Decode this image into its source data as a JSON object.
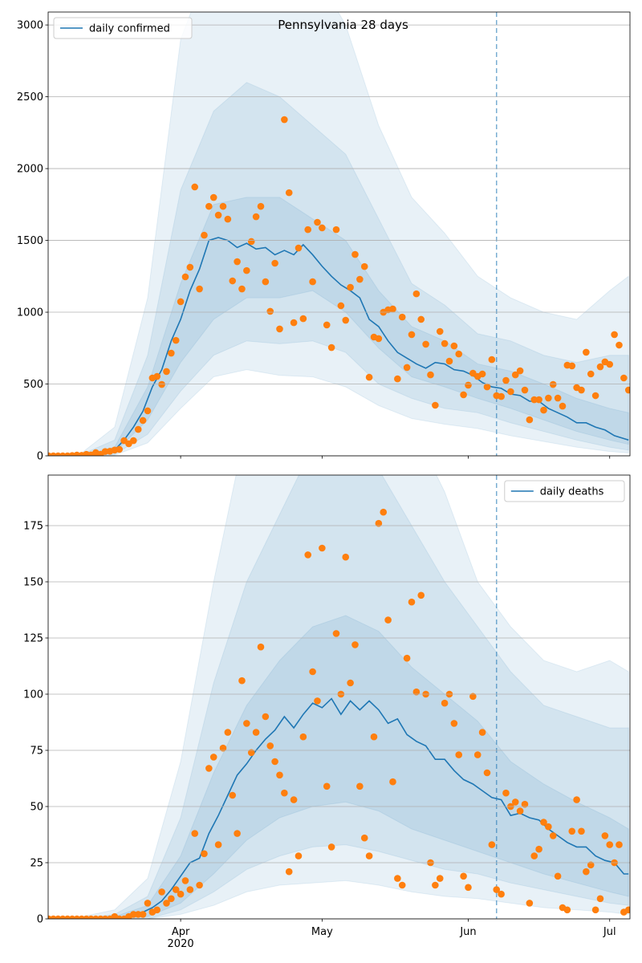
{
  "chart_data": [
    {
      "type": "line",
      "title": "Pennsylvania 28 days",
      "legend": "upper left",
      "grid": true,
      "show_xtick_labels": false,
      "xlim": [
        63.9,
        187.3
      ],
      "xticks": [
        92,
        122,
        153,
        183
      ],
      "ylim": [
        0,
        3090
      ],
      "yticks": [
        0,
        500,
        1000,
        1500,
        2000,
        2500,
        3000
      ],
      "vline": {
        "x": 159,
        "color": "#1f77b4"
      },
      "x": [
        64,
        65,
        66,
        67,
        68,
        69,
        70,
        71,
        72,
        73,
        74,
        75,
        76,
        77,
        78,
        79,
        80,
        81,
        82,
        83,
        84,
        85,
        86,
        87,
        88,
        89,
        90,
        91,
        92,
        93,
        94,
        95,
        96,
        97,
        98,
        99,
        100,
        101,
        102,
        103,
        104,
        105,
        106,
        107,
        108,
        109,
        110,
        111,
        112,
        113,
        114,
        115,
        116,
        117,
        118,
        119,
        120,
        121,
        122,
        123,
        124,
        125,
        126,
        127,
        128,
        129,
        130,
        131,
        132,
        133,
        134,
        135,
        136,
        137,
        138,
        139,
        140,
        141,
        142,
        143,
        144,
        145,
        146,
        147,
        148,
        149,
        150,
        151,
        152,
        153,
        154,
        155,
        156,
        157,
        158,
        159,
        160,
        161,
        162,
        163,
        164,
        165,
        166,
        167,
        168,
        169,
        170,
        171,
        172,
        173,
        174,
        175,
        176,
        177,
        178,
        179,
        180,
        181,
        182,
        183,
        184,
        185,
        186,
        187
      ],
      "points": {
        "color": "#ff7f0e",
        "values": [
          0,
          0,
          0,
          0,
          0,
          2,
          5,
          3,
          10,
          6,
          22,
          10,
          30,
          32,
          40,
          45,
          106,
          84,
          106,
          184,
          246,
          313,
          542,
          553,
          497,
          587,
          715,
          804,
          1073,
          1246,
          1313,
          1872,
          1162,
          1536,
          1737,
          1799,
          1676,
          1737,
          1648,
          1218,
          1352,
          1162,
          1290,
          1492,
          1665,
          1737,
          1212,
          1006,
          1341,
          883,
          2341,
          1832,
          927,
          1447,
          955,
          1575,
          1212,
          1626,
          1587,
          911,
          754,
          1575,
          1045,
          944,
          1173,
          1402,
          1229,
          1318,
          547,
          827,
          816,
          1000,
          1017,
          1022,
          536,
          966,
          615,
          844,
          1128,
          950,
          777,
          564,
          352,
          866,
          782,
          659,
          765,
          709,
          425,
          492,
          575,
          553,
          570,
          480,
          670,
          419,
          413,
          525,
          447,
          564,
          592,
          458,
          251,
          391,
          391,
          318,
          402,
          497,
          402,
          346,
          631,
          626,
          475,
          458,
          721,
          570,
          419,
          620,
          654,
          637,
          844,
          771,
          542,
          458
        ]
      },
      "series": [
        {
          "name": "daily confirmed",
          "color": "#1f77b4",
          "x": [
            64,
            66,
            68,
            70,
            72,
            74,
            76,
            78,
            80,
            82,
            84,
            86,
            88,
            90,
            92,
            94,
            96,
            98,
            100,
            102,
            104,
            106,
            108,
            110,
            112,
            114,
            116,
            118,
            120,
            122,
            124,
            126,
            128,
            130,
            132,
            134,
            136,
            138,
            140,
            142,
            144,
            146,
            148,
            150,
            152,
            154,
            156,
            158,
            160,
            162,
            164,
            166,
            168,
            170,
            172,
            174,
            176,
            178,
            180,
            182,
            184,
            186,
            187
          ],
          "values": [
            0,
            0,
            1,
            3,
            8,
            15,
            25,
            40,
            110,
            200,
            310,
            480,
            600,
            800,
            950,
            1150,
            1300,
            1500,
            1520,
            1500,
            1450,
            1480,
            1440,
            1450,
            1400,
            1430,
            1400,
            1470,
            1400,
            1320,
            1250,
            1190,
            1150,
            1100,
            950,
            900,
            800,
            720,
            680,
            640,
            610,
            650,
            640,
            600,
            590,
            560,
            510,
            480,
            470,
            430,
            420,
            380,
            380,
            330,
            300,
            270,
            230,
            230,
            200,
            180,
            140,
            120,
            110
          ]
        }
      ],
      "bands": [
        {
          "color": "#1f77b4",
          "opacity": 0.1,
          "x": [
            64,
            71,
            78,
            85,
            92,
            99,
            106,
            113,
            120,
            127,
            134,
            141,
            148,
            155,
            162,
            169,
            176,
            183,
            187
          ],
          "lower": [
            0,
            0,
            5,
            90,
            330,
            550,
            600,
            560,
            550,
            480,
            350,
            260,
            220,
            190,
            140,
            100,
            60,
            30,
            20
          ],
          "upper": [
            0,
            20,
            200,
            1100,
            2900,
            3500,
            3600,
            3500,
            3400,
            3000,
            2300,
            1800,
            1550,
            1250,
            1100,
            1000,
            950,
            1150,
            1250
          ]
        },
        {
          "color": "#1f77b4",
          "opacity": 0.1,
          "x": [
            64,
            71,
            78,
            85,
            92,
            99,
            106,
            113,
            120,
            127,
            134,
            141,
            148,
            155,
            162,
            169,
            176,
            183,
            187
          ],
          "lower": [
            0,
            0,
            10,
            150,
            450,
            700,
            800,
            780,
            800,
            720,
            500,
            400,
            330,
            300,
            230,
            170,
            110,
            60,
            40
          ],
          "upper": [
            0,
            10,
            110,
            700,
            1850,
            2400,
            2600,
            2500,
            2300,
            2100,
            1650,
            1200,
            1050,
            850,
            800,
            700,
            650,
            700,
            700
          ]
        },
        {
          "color": "#1f77b4",
          "opacity": 0.1,
          "x": [
            64,
            71,
            78,
            85,
            92,
            99,
            106,
            113,
            120,
            127,
            134,
            141,
            148,
            155,
            162,
            169,
            176,
            183,
            187
          ],
          "lower": [
            0,
            1,
            25,
            250,
            650,
            950,
            1100,
            1100,
            1150,
            1000,
            750,
            550,
            480,
            400,
            330,
            250,
            170,
            110,
            80
          ],
          "upper": [
            0,
            5,
            60,
            480,
            1200,
            1750,
            1800,
            1800,
            1650,
            1500,
            1150,
            900,
            800,
            640,
            590,
            500,
            400,
            330,
            300
          ]
        }
      ]
    },
    {
      "type": "line",
      "legend": "upper right",
      "grid": true,
      "show_xtick_labels": true,
      "xlim": [
        63.9,
        187.3
      ],
      "xticks": [
        {
          "value": 92,
          "label": "Apr\n2020"
        },
        {
          "value": 122,
          "label": "May"
        },
        {
          "value": 153,
          "label": "Jun"
        },
        {
          "value": 183,
          "label": "Jul"
        }
      ],
      "ylim": [
        0,
        197.5
      ],
      "yticks": [
        0,
        25,
        50,
        75,
        100,
        125,
        150,
        175
      ],
      "vline": {
        "x": 159,
        "color": "#1f77b4"
      },
      "x": [
        64,
        65,
        66,
        67,
        68,
        69,
        70,
        71,
        72,
        73,
        74,
        75,
        76,
        77,
        78,
        79,
        80,
        81,
        82,
        83,
        84,
        85,
        86,
        87,
        88,
        89,
        90,
        91,
        92,
        93,
        94,
        95,
        96,
        97,
        98,
        99,
        100,
        101,
        102,
        103,
        104,
        105,
        106,
        107,
        108,
        109,
        110,
        111,
        112,
        113,
        114,
        115,
        116,
        117,
        118,
        119,
        120,
        121,
        122,
        123,
        124,
        125,
        126,
        127,
        128,
        129,
        130,
        131,
        132,
        133,
        134,
        135,
        136,
        137,
        138,
        139,
        140,
        141,
        142,
        143,
        144,
        145,
        146,
        147,
        148,
        149,
        150,
        151,
        152,
        153,
        154,
        155,
        156,
        157,
        158,
        159,
        160,
        161,
        162,
        163,
        164,
        165,
        166,
        167,
        168,
        169,
        170,
        171,
        172,
        173,
        174,
        175,
        176,
        177,
        178,
        179,
        180,
        181,
        182,
        183,
        184,
        185,
        186,
        187
      ],
      "points": {
        "color": "#ff7f0e",
        "values": [
          0,
          0,
          0,
          0,
          0,
          0,
          0,
          0,
          0,
          0,
          0,
          0,
          0,
          0,
          1,
          0,
          0,
          1,
          2,
          2,
          2,
          7,
          3,
          4,
          12,
          7,
          9,
          13,
          11,
          17,
          13,
          38,
          15,
          29,
          67,
          72,
          33,
          76,
          83,
          55,
          38,
          106,
          87,
          74,
          83,
          121,
          90,
          77,
          70,
          64,
          56,
          21,
          53,
          28,
          81,
          162,
          110,
          97,
          165,
          59,
          32,
          127,
          100,
          161,
          105,
          122,
          59,
          36,
          28,
          81,
          176,
          181,
          133,
          61,
          18,
          15,
          116,
          141,
          101,
          144,
          100,
          25,
          15,
          18,
          96,
          100,
          87,
          73,
          19,
          14,
          99,
          73,
          83,
          65,
          33,
          13,
          11,
          56,
          50,
          52,
          48,
          51,
          7,
          28,
          31,
          43,
          41,
          37,
          19,
          5,
          4,
          39,
          53,
          39,
          21,
          24,
          4,
          9,
          37,
          33,
          25,
          33,
          3,
          4
        ]
      },
      "series": [
        {
          "name": "daily deaths",
          "color": "#1f77b4",
          "x": [
            64,
            66,
            68,
            70,
            72,
            74,
            76,
            78,
            80,
            82,
            84,
            86,
            88,
            90,
            92,
            94,
            96,
            98,
            100,
            102,
            104,
            106,
            108,
            110,
            112,
            114,
            116,
            118,
            120,
            122,
            124,
            126,
            128,
            130,
            132,
            134,
            136,
            138,
            140,
            142,
            144,
            146,
            148,
            150,
            152,
            154,
            156,
            158,
            160,
            162,
            164,
            166,
            168,
            170,
            172,
            174,
            176,
            178,
            180,
            182,
            184,
            186,
            187
          ],
          "values": [
            0,
            0,
            0,
            0,
            0,
            0,
            0,
            0,
            0.5,
            1,
            3,
            5,
            8,
            13,
            19,
            25,
            27,
            38,
            46,
            55,
            64,
            69,
            75,
            80,
            84,
            90,
            85,
            91,
            96,
            94,
            98,
            91,
            97,
            93,
            97,
            93,
            87,
            89,
            82,
            79,
            77,
            71,
            71,
            66,
            62,
            60,
            57,
            54,
            53,
            46,
            47,
            45,
            44,
            40,
            37,
            34,
            32,
            32,
            28,
            26,
            25,
            20,
            20
          ]
        }
      ],
      "bands": [
        {
          "color": "#1f77b4",
          "opacity": 0.1,
          "x": [
            64,
            71,
            78,
            85,
            92,
            99,
            106,
            113,
            120,
            127,
            134,
            141,
            148,
            155,
            162,
            169,
            176,
            183,
            187
          ],
          "lower": [
            0,
            0,
            0,
            0,
            2,
            6,
            12,
            15,
            16,
            17,
            15,
            12,
            10,
            9,
            7,
            5,
            4,
            3,
            2
          ],
          "upper": [
            0,
            1,
            4,
            18,
            70,
            150,
            220,
            260,
            280,
            270,
            250,
            220,
            190,
            150,
            130,
            115,
            110,
            115,
            110
          ]
        },
        {
          "color": "#1f77b4",
          "opacity": 0.1,
          "x": [
            64,
            71,
            78,
            85,
            92,
            99,
            106,
            113,
            120,
            127,
            134,
            141,
            148,
            155,
            162,
            169,
            176,
            183,
            187
          ],
          "lower": [
            0,
            0,
            0,
            0,
            4,
            12,
            22,
            28,
            32,
            33,
            30,
            26,
            22,
            20,
            16,
            13,
            10,
            7,
            6
          ],
          "upper": [
            0,
            0,
            2,
            10,
            45,
            105,
            150,
            180,
            210,
            215,
            200,
            175,
            150,
            130,
            110,
            95,
            90,
            85,
            85
          ]
        },
        {
          "color": "#1f77b4",
          "opacity": 0.1,
          "x": [
            64,
            71,
            78,
            85,
            92,
            99,
            106,
            113,
            120,
            127,
            134,
            141,
            148,
            155,
            162,
            169,
            176,
            183,
            187
          ],
          "lower": [
            0,
            0,
            0,
            1,
            7,
            20,
            35,
            45,
            50,
            52,
            48,
            40,
            35,
            30,
            25,
            20,
            16,
            12,
            10
          ],
          "upper": [
            0,
            0,
            1,
            6,
            28,
            65,
            95,
            115,
            130,
            135,
            128,
            112,
            100,
            88,
            70,
            60,
            52,
            45,
            40
          ]
        }
      ]
    }
  ]
}
